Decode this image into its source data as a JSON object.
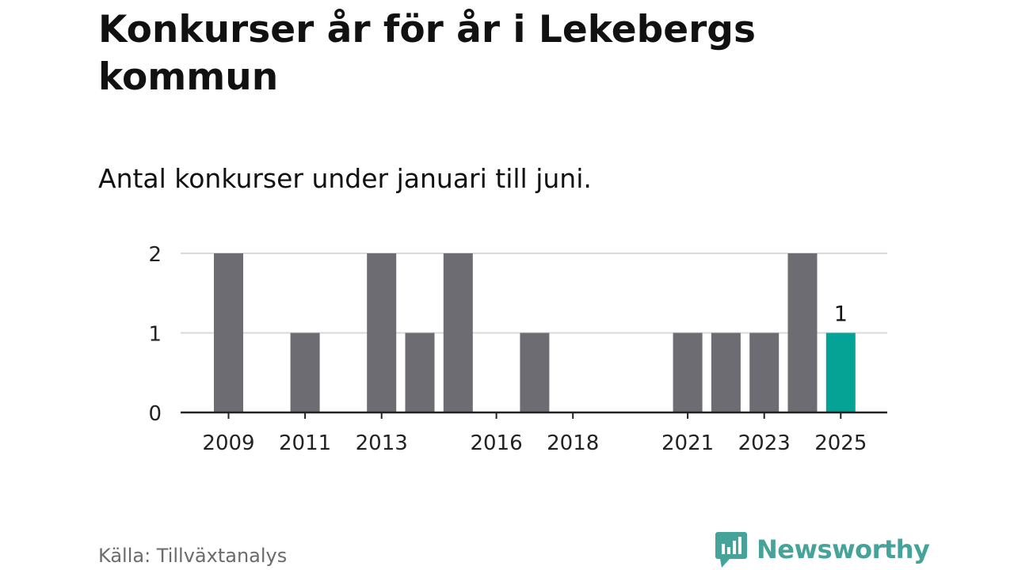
{
  "header": {
    "title": "Konkurser år för år i Lekebergs kommun",
    "subtitle": "Antal konkurser under januari till juni."
  },
  "footer": {
    "source": "Källa: Tillväxtanalys",
    "brand": "Newsworthy"
  },
  "colors": {
    "bar": "#6d6c72",
    "highlight": "#05a396",
    "brand": "#45a39a",
    "grid": "#d9d9d9",
    "axis": "#222222"
  },
  "icons": {
    "brand_logo": "newsworthy-logo-icon"
  },
  "chart_data": {
    "type": "bar",
    "categories": [
      "2009",
      "2010",
      "2011",
      "2012",
      "2013",
      "2014",
      "2015",
      "2016",
      "2017",
      "2018",
      "2019",
      "2020",
      "2021",
      "2022",
      "2023",
      "2024",
      "2025"
    ],
    "values": [
      2,
      0,
      1,
      0,
      2,
      1,
      2,
      0,
      1,
      0,
      0,
      0,
      1,
      1,
      1,
      2,
      1
    ],
    "highlight_category": "2025",
    "x_tick_labels": [
      "2009",
      "2011",
      "2013",
      "2016",
      "2018",
      "2021",
      "2023",
      "2025"
    ],
    "y_ticks": [
      0,
      1,
      2
    ],
    "ylim": [
      0,
      2
    ],
    "grid": true,
    "data_labels": [
      {
        "category": "2025",
        "text": "1"
      }
    ]
  }
}
